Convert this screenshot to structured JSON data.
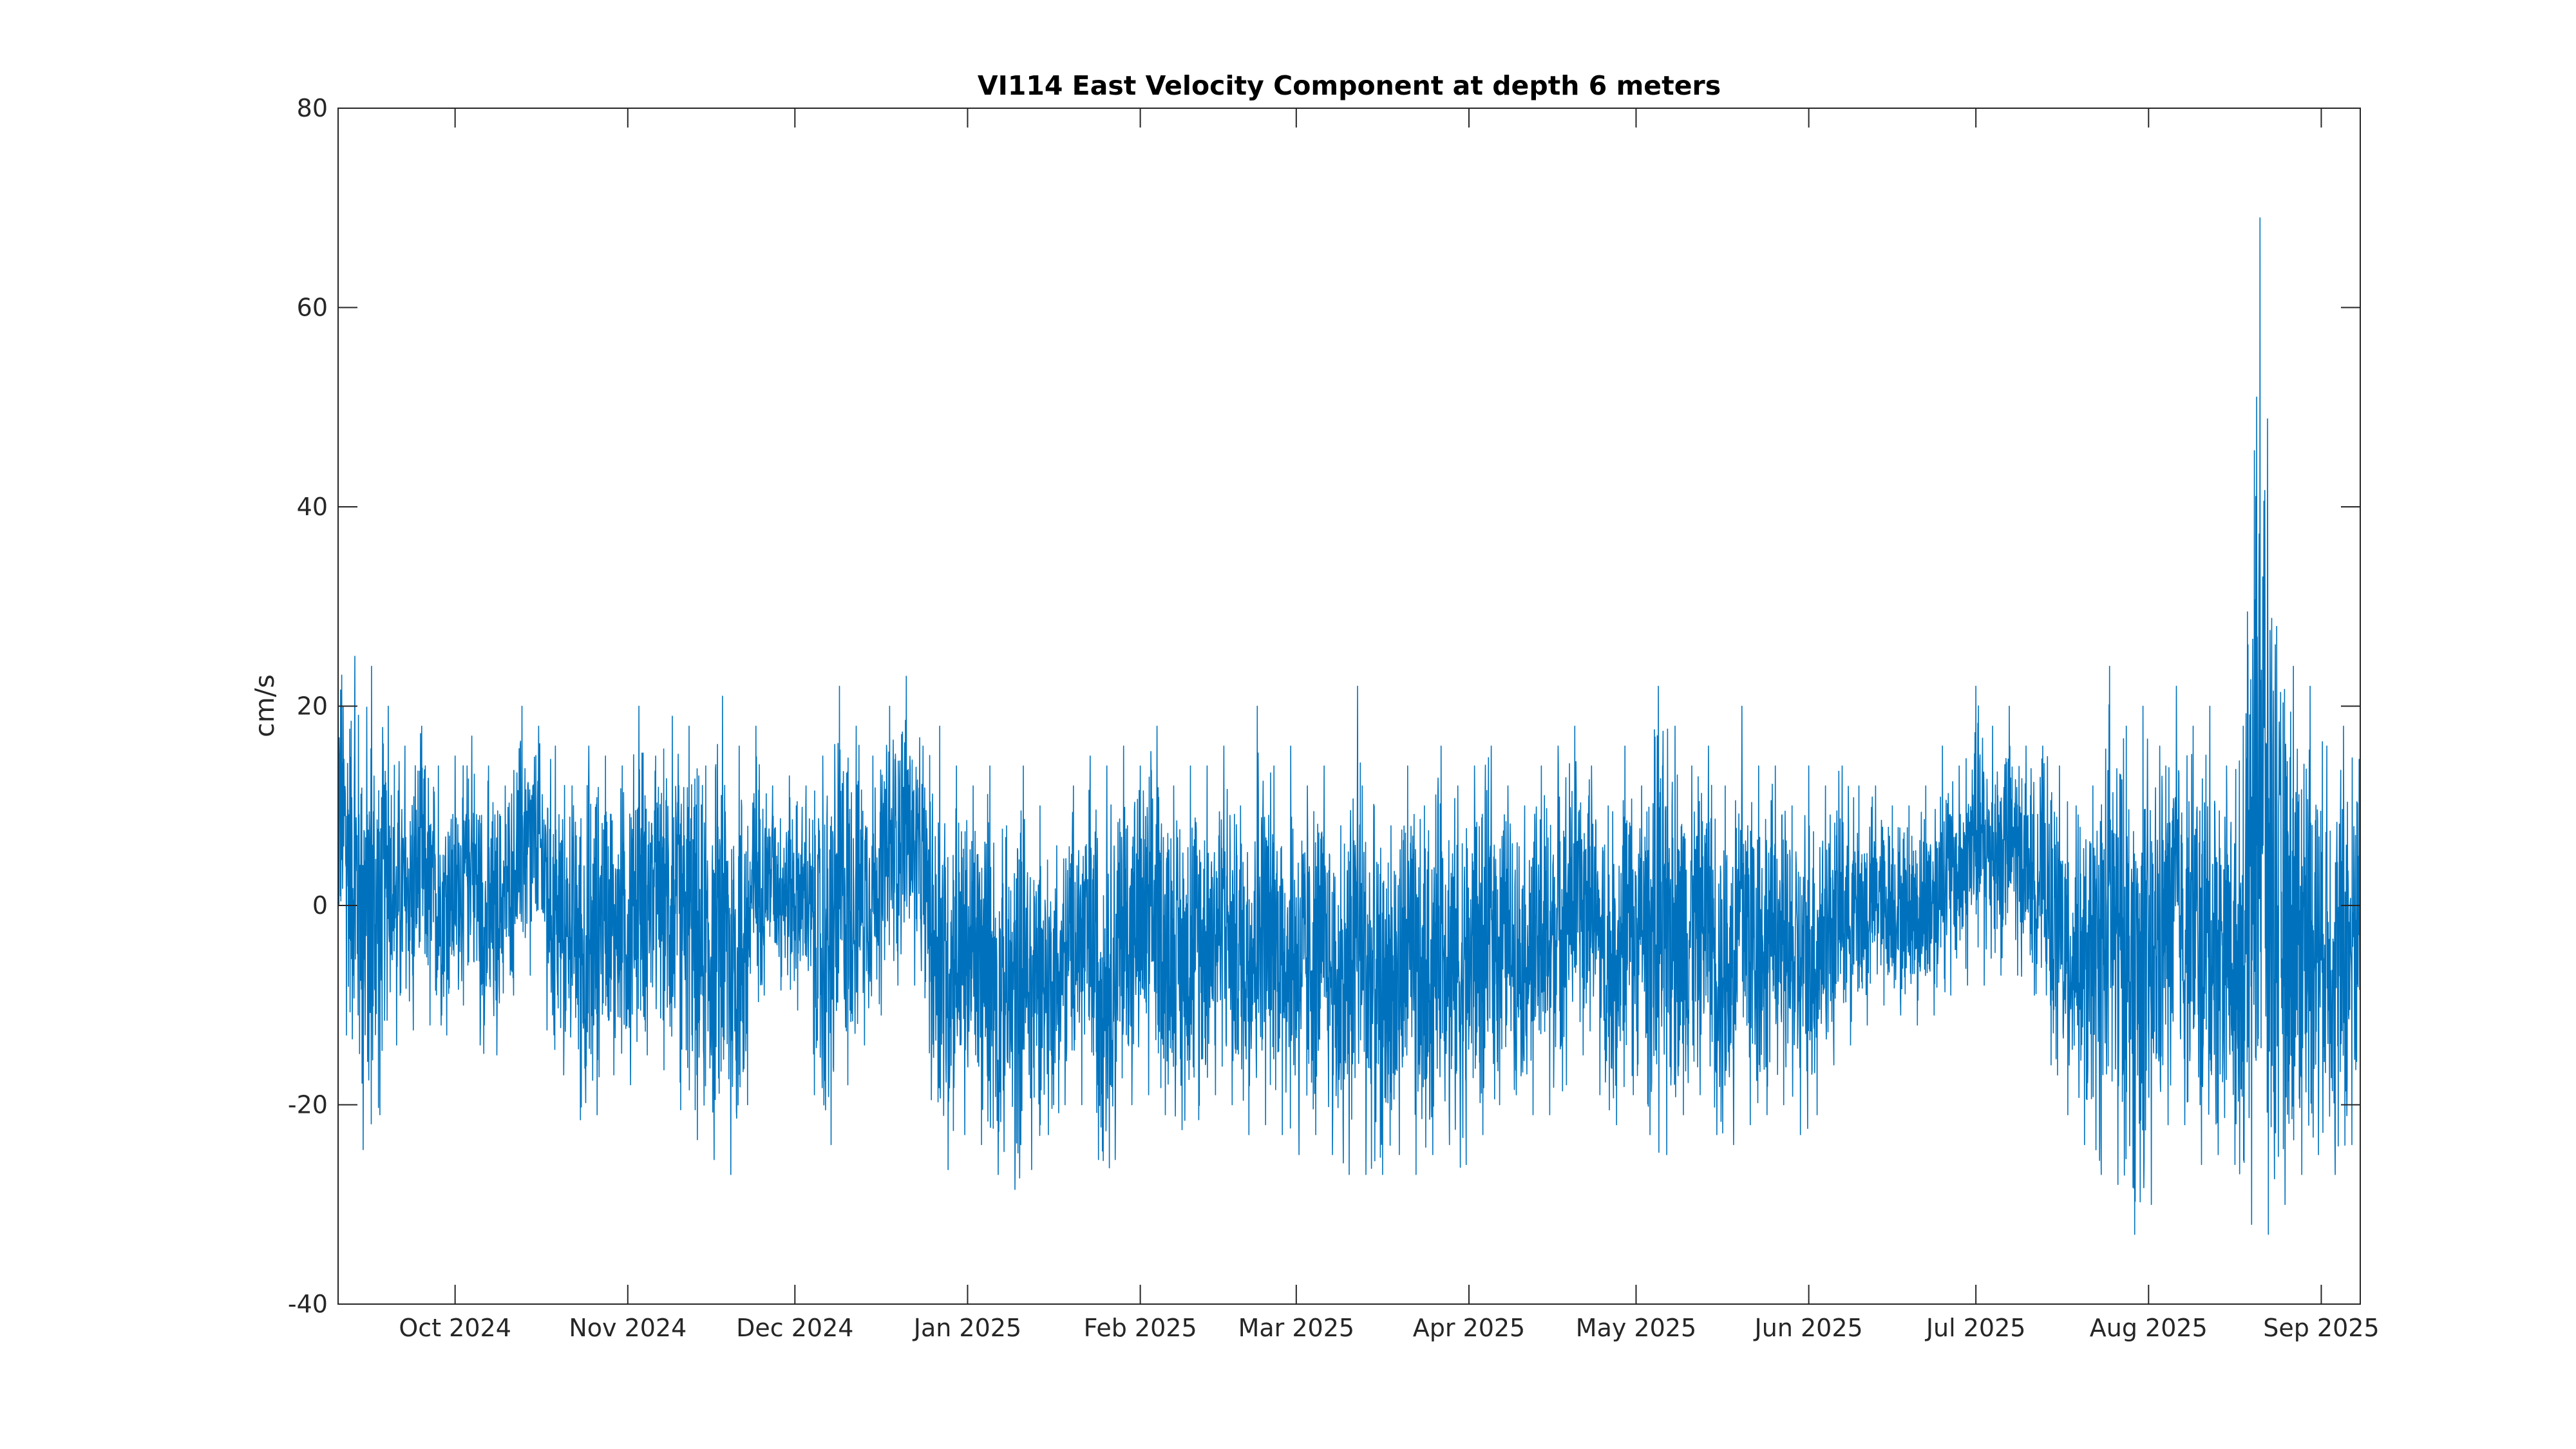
{
  "chart_data": {
    "type": "line",
    "title": "VI114 East Velocity Component at depth 6 meters",
    "xlabel": "",
    "ylabel": "cm/s",
    "xlim": [
      "2024-09-10",
      "2025-09-08"
    ],
    "ylim": [
      -40,
      80
    ],
    "y_ticks": [
      -40,
      -20,
      0,
      20,
      40,
      60,
      80
    ],
    "x_ticks": [
      {
        "date": "2024-10-01",
        "label": "Oct 2024"
      },
      {
        "date": "2024-11-01",
        "label": "Nov 2024"
      },
      {
        "date": "2024-12-01",
        "label": "Dec 2024"
      },
      {
        "date": "2025-01-01",
        "label": "Jan 2025"
      },
      {
        "date": "2025-02-01",
        "label": "Feb 2025"
      },
      {
        "date": "2025-03-01",
        "label": "Mar 2025"
      },
      {
        "date": "2025-04-01",
        "label": "Apr 2025"
      },
      {
        "date": "2025-05-01",
        "label": "May 2025"
      },
      {
        "date": "2025-06-01",
        "label": "Jun 2025"
      },
      {
        "date": "2025-07-01",
        "label": "Jul 2025"
      },
      {
        "date": "2025-08-01",
        "label": "Aug 2025"
      },
      {
        "date": "2025-09-01",
        "label": "Sep 2025"
      }
    ],
    "grid": false,
    "series": [
      {
        "color": "#0072BD",
        "x": [
          "2024-09-10",
          "2024-09-13",
          "2024-09-16",
          "2024-09-19",
          "2024-09-22",
          "2024-09-25",
          "2024-09-28",
          "2024-10-01",
          "2024-10-04",
          "2024-10-07",
          "2024-10-10",
          "2024-10-13",
          "2024-10-16",
          "2024-10-19",
          "2024-10-22",
          "2024-10-25",
          "2024-10-28",
          "2024-10-31",
          "2024-11-03",
          "2024-11-06",
          "2024-11-09",
          "2024-11-12",
          "2024-11-15",
          "2024-11-18",
          "2024-11-21",
          "2024-11-24",
          "2024-11-27",
          "2024-11-30",
          "2024-12-03",
          "2024-12-06",
          "2024-12-09",
          "2024-12-12",
          "2024-12-15",
          "2024-12-18",
          "2024-12-21",
          "2024-12-24",
          "2024-12-27",
          "2024-12-30",
          "2025-01-02",
          "2025-01-05",
          "2025-01-08",
          "2025-01-11",
          "2025-01-14",
          "2025-01-17",
          "2025-01-20",
          "2025-01-23",
          "2025-01-26",
          "2025-01-29",
          "2025-02-01",
          "2025-02-04",
          "2025-02-07",
          "2025-02-10",
          "2025-02-13",
          "2025-02-16",
          "2025-02-19",
          "2025-02-22",
          "2025-02-25",
          "2025-02-28",
          "2025-03-03",
          "2025-03-06",
          "2025-03-09",
          "2025-03-12",
          "2025-03-15",
          "2025-03-18",
          "2025-03-21",
          "2025-03-24",
          "2025-03-27",
          "2025-03-30",
          "2025-04-02",
          "2025-04-05",
          "2025-04-08",
          "2025-04-11",
          "2025-04-14",
          "2025-04-17",
          "2025-04-20",
          "2025-04-23",
          "2025-04-26",
          "2025-04-29",
          "2025-05-02",
          "2025-05-05",
          "2025-05-08",
          "2025-05-11",
          "2025-05-14",
          "2025-05-17",
          "2025-05-20",
          "2025-05-23",
          "2025-05-26",
          "2025-05-29",
          "2025-06-01",
          "2025-06-04",
          "2025-06-07",
          "2025-06-10",
          "2025-06-13",
          "2025-06-16",
          "2025-06-19",
          "2025-06-22",
          "2025-06-25",
          "2025-06-28",
          "2025-07-01",
          "2025-07-04",
          "2025-07-07",
          "2025-07-10",
          "2025-07-13",
          "2025-07-16",
          "2025-07-19",
          "2025-07-22",
          "2025-07-25",
          "2025-07-28",
          "2025-07-31",
          "2025-08-03",
          "2025-08-06",
          "2025-08-09",
          "2025-08-12",
          "2025-08-15",
          "2025-08-18",
          "2025-08-21",
          "2025-08-24",
          "2025-08-27",
          "2025-08-30",
          "2025-09-02",
          "2025-09-05",
          "2025-09-08"
        ],
        "low": [
          -6,
          -20,
          -29,
          -13,
          -15,
          -10,
          -14,
          -12,
          -8,
          -20,
          -10,
          -8,
          -6,
          -19,
          -15,
          -28,
          -14,
          -20,
          -16,
          -14,
          -19,
          -22,
          -25,
          -26,
          -28,
          -12,
          -6,
          -11,
          -10,
          -28,
          -20,
          -16,
          -12,
          -10,
          -6,
          -10,
          -29,
          -24,
          -22,
          -26,
          -28,
          -29,
          -24,
          -22,
          -18,
          -22,
          -29,
          -22,
          -18,
          -20,
          -22,
          -23,
          -20,
          -18,
          -22,
          -24,
          -20,
          -26,
          -24,
          -22,
          -28,
          -26,
          -28,
          -26,
          -24,
          -30,
          -20,
          -28,
          -24,
          -22,
          -18,
          -20,
          -22,
          -20,
          -16,
          -14,
          -24,
          -20,
          -18,
          -28,
          -22,
          -20,
          -18,
          -28,
          -20,
          -24,
          -18,
          -22,
          -24,
          -18,
          -14,
          -14,
          -10,
          -10,
          -12,
          -12,
          -10,
          -8,
          -8,
          -8,
          -6,
          -8,
          -10,
          -22,
          -20,
          -28,
          -26,
          -30,
          -36,
          -24,
          -20,
          -24,
          -28,
          -22,
          -30,
          -34,
          -32,
          -28,
          -26,
          -24,
          -30,
          -18
        ],
        "high": [
          28,
          25,
          24,
          20,
          16,
          18,
          14,
          15,
          17,
          14,
          12,
          20,
          18,
          16,
          12,
          16,
          15,
          14,
          20,
          15,
          19,
          18,
          14,
          21,
          16,
          18,
          12,
          13,
          12,
          15,
          22,
          18,
          15,
          20,
          23,
          16,
          18,
          14,
          12,
          14,
          8,
          14,
          10,
          6,
          12,
          15,
          14,
          16,
          14,
          18,
          12,
          14,
          14,
          16,
          10,
          20,
          14,
          16,
          12,
          14,
          8,
          22,
          10,
          8,
          14,
          10,
          16,
          12,
          14,
          16,
          12,
          10,
          14,
          16,
          18,
          14,
          10,
          16,
          12,
          22,
          18,
          14,
          16,
          12,
          20,
          14,
          14,
          10,
          14,
          12,
          14,
          12,
          12,
          10,
          10,
          12,
          16,
          14,
          22,
          18,
          20,
          16,
          16,
          14,
          10,
          12,
          24,
          18,
          20,
          16,
          22,
          18,
          20,
          14,
          18,
          69,
          28,
          24,
          22,
          16,
          18,
          20
        ]
      }
    ]
  }
}
